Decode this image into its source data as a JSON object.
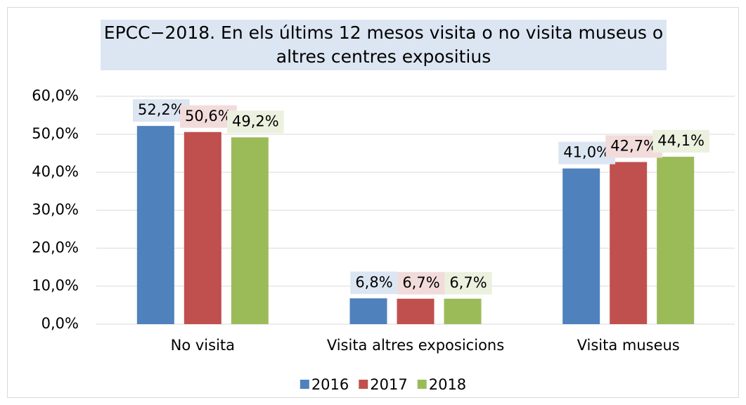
{
  "chart_data": {
    "type": "bar",
    "title": "EPCC−2018. En els últims 12 mesos visita o no visita museus o altres centres expositius",
    "categories": [
      "No visita",
      "Visita altres exposicions",
      "Visita museus"
    ],
    "series": [
      {
        "name": "2016",
        "color": "#4f81bd",
        "label_bg": "#dce6f2",
        "values": [
          52.2,
          6.8,
          41.0
        ],
        "value_labels": [
          "52,2%",
          "6,8%",
          "41,0%"
        ]
      },
      {
        "name": "2017",
        "color": "#c0504d",
        "label_bg": "#f2dcdb",
        "values": [
          50.6,
          6.7,
          42.7
        ],
        "value_labels": [
          "50,6%",
          "6,7%",
          "42,7%"
        ]
      },
      {
        "name": "2018",
        "color": "#9bbb59",
        "label_bg": "#ebf1de",
        "values": [
          49.2,
          6.7,
          44.1
        ],
        "value_labels": [
          "49,2%",
          "6,7%",
          "44,1%"
        ]
      }
    ],
    "ylim": [
      0,
      60
    ],
    "yticks": [
      {
        "value": 0,
        "label": "0,0%"
      },
      {
        "value": 10,
        "label": "10,0%"
      },
      {
        "value": 20,
        "label": "20,0%"
      },
      {
        "value": 30,
        "label": "30,0%"
      },
      {
        "value": 40,
        "label": "40,0%"
      },
      {
        "value": 50,
        "label": "50,0%"
      },
      {
        "value": 60,
        "label": "60,0%"
      }
    ],
    "grid": true,
    "legend": "bottom",
    "title_bg": "#dce6f2"
  }
}
